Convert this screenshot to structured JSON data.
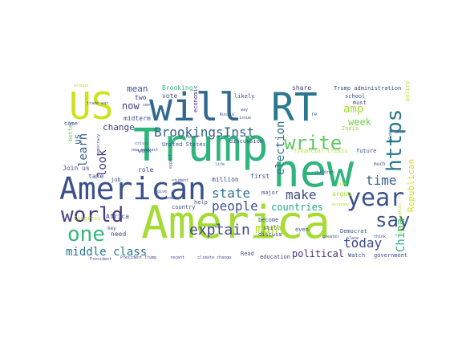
{
  "wordcloud": {
    "words": [
      {
        "text": "America",
        "color": "#a6db36"
      },
      {
        "text": "Trump",
        "color": "#2fb47c"
      },
      {
        "text": "new",
        "color": "#2fb47c"
      },
      {
        "text": "will",
        "color": "#30698e"
      },
      {
        "text": "RT",
        "color": "#2a788e"
      },
      {
        "text": "US",
        "color": "#cde11d"
      },
      {
        "text": "American",
        "color": "#3b518b"
      },
      {
        "text": "world",
        "color": "#423f85"
      },
      {
        "text": "year",
        "color": "#3b528b"
      },
      {
        "text": "https",
        "color": "#29798e"
      },
      {
        "text": "one",
        "color": "#35b779"
      },
      {
        "text": "write",
        "color": "#5ec962"
      },
      {
        "text": "say",
        "color": "#3a548c"
      },
      {
        "text": "BrookingsInst",
        "color": "#33638d"
      },
      {
        "text": "explain",
        "color": "#3f4889"
      },
      {
        "text": "state",
        "color": "#2c728e"
      },
      {
        "text": "people",
        "color": "#3b528b"
      },
      {
        "text": "make",
        "color": "#3e4a89"
      },
      {
        "text": "time",
        "color": "#35608d"
      },
      {
        "text": "many",
        "color": "#b5de2b"
      },
      {
        "text": "today",
        "color": "#3e4989"
      },
      {
        "text": "China",
        "color": "#2db27d"
      },
      {
        "text": "middle class",
        "color": "#2a768e"
      },
      {
        "text": "amp",
        "color": "#a5db36"
      },
      {
        "text": "look",
        "color": "#453781"
      },
      {
        "text": "learn",
        "color": "#33638d"
      },
      {
        "text": "election",
        "color": "#2e6e8e"
      },
      {
        "text": "political",
        "color": "#472f7d"
      },
      {
        "text": "countries",
        "color": "#21a685"
      },
      {
        "text": "Republican",
        "color": "#d8e219"
      },
      {
        "text": "now",
        "color": "#424086"
      },
      {
        "text": "change",
        "color": "#3f4788"
      },
      {
        "text": "week",
        "color": "#7ad151"
      },
      {
        "text": "mean",
        "color": "#3b528b"
      },
      {
        "text": "us",
        "color": "#33638d"
      },
      {
        "text": "Brooking",
        "color": "#35b779"
      },
      {
        "text": "vote",
        "color": "#3b528b"
      },
      {
        "text": "two",
        "color": "#472d7b"
      },
      {
        "text": "midterm",
        "color": "#3b528b"
      },
      {
        "text": "economic",
        "color": "#46337f"
      },
      {
        "text": "likely",
        "color": "#3e4989"
      },
      {
        "text": "share",
        "color": "#433e85"
      },
      {
        "text": "Trump administration",
        "color": "#3e4989"
      },
      {
        "text": "school",
        "color": "#3b528b"
      },
      {
        "text": "must",
        "color": "#404688"
      },
      {
        "text": "policy",
        "color": "#b5de2b"
      },
      {
        "text": "India",
        "color": "#a5db36"
      },
      {
        "text": "United States",
        "color": "#3b528b"
      },
      {
        "text": "discussion",
        "color": "#424086"
      },
      {
        "text": "work",
        "color": "#3e4989"
      },
      {
        "text": "better",
        "color": "#6ece58"
      },
      {
        "text": "come",
        "color": "#3b528b"
      },
      {
        "text": "Join us",
        "color": "#3e4989"
      },
      {
        "text": "job",
        "color": "#3b528b"
      },
      {
        "text": "take",
        "color": "#3b528b"
      },
      {
        "text": "role",
        "color": "#3e4989"
      },
      {
        "text": "million",
        "color": "#3e4989"
      },
      {
        "text": "first",
        "color": "#3b528b"
      },
      {
        "text": "major",
        "color": "#3e4989"
      },
      {
        "text": "argue",
        "color": "#a5db36"
      },
      {
        "text": "help",
        "color": "#3b528b"
      },
      {
        "text": "country",
        "color": "#3b528b"
      },
      {
        "text": "still",
        "color": "#3b528b"
      },
      {
        "text": "become",
        "color": "#3b528b"
      },
      {
        "text": "discuss",
        "color": "#3e4989"
      },
      {
        "text": "even",
        "color": "#3b528b"
      },
      {
        "text": "Democrat",
        "color": "#3b528b"
      },
      {
        "text": "Africa",
        "color": "#3e4989"
      },
      {
        "text": "need",
        "color": "#3e4989"
      },
      {
        "text": "Congress",
        "color": "#b5de2b"
      },
      {
        "text": "key",
        "color": "#3b528b"
      },
      {
        "text": "Read",
        "color": "#3b528b"
      },
      {
        "text": "education",
        "color": "#3e4989"
      },
      {
        "text": "Watch",
        "color": "#3b528b"
      },
      {
        "text": "government",
        "color": "#3e4989"
      },
      {
        "text": "future",
        "color": "#3b528b"
      },
      {
        "text": "financial crisis",
        "color": "#b5de2b"
      },
      {
        "text": "economy",
        "color": "#b5de2b"
      },
      {
        "text": "President",
        "color": "#3b528b"
      },
      {
        "text": "President Trump",
        "color": "#3e4989"
      },
      {
        "text": "recent",
        "color": "#3e4989"
      },
      {
        "text": "climate change",
        "color": "#3b528b"
      },
      {
        "text": "globalization",
        "color": "#b5de2b"
      },
      {
        "text": "much",
        "color": "#3b528b"
      },
      {
        "text": "around",
        "color": "#b5de2b"
      },
      {
        "text": "trade war",
        "color": "#3b528b"
      },
      {
        "text": "Russia",
        "color": "#3b528b"
      },
      {
        "text": "crisis",
        "color": "#3b528b"
      },
      {
        "text": "new podcast",
        "color": "#3b528b"
      },
      {
        "text": "democracy",
        "color": "#3b528b"
      },
      {
        "text": "expert",
        "color": "#3b528b"
      },
      {
        "text": "House",
        "color": "#3b528b"
      },
      {
        "text": "children",
        "color": "#3b528b"
      },
      {
        "text": "greater",
        "color": "#3b528b"
      },
      {
        "text": "place",
        "color": "#3b528b"
      },
      {
        "text": "think",
        "color": "#3b528b"
      },
      {
        "text": "global",
        "color": "#3b528b"
      },
      {
        "text": "data",
        "color": "#3b528b"
      },
      {
        "text": "issue",
        "color": "#3b528b"
      },
      {
        "text": "way",
        "color": "#3b528b"
      },
      {
        "text": "re",
        "color": "#3b528b"
      },
      {
        "text": "see",
        "color": "#3b528b"
      },
      {
        "text": "woman",
        "color": "#3b528b"
      },
      {
        "text": "student",
        "color": "#3b528b"
      },
      {
        "text": "home",
        "color": "#3b528b"
      },
      {
        "text": "give",
        "color": "#3b528b"
      },
      {
        "text": "life",
        "color": "#3b528b"
      },
      {
        "text": "five",
        "color": "#b5de2b"
      }
    ]
  }
}
